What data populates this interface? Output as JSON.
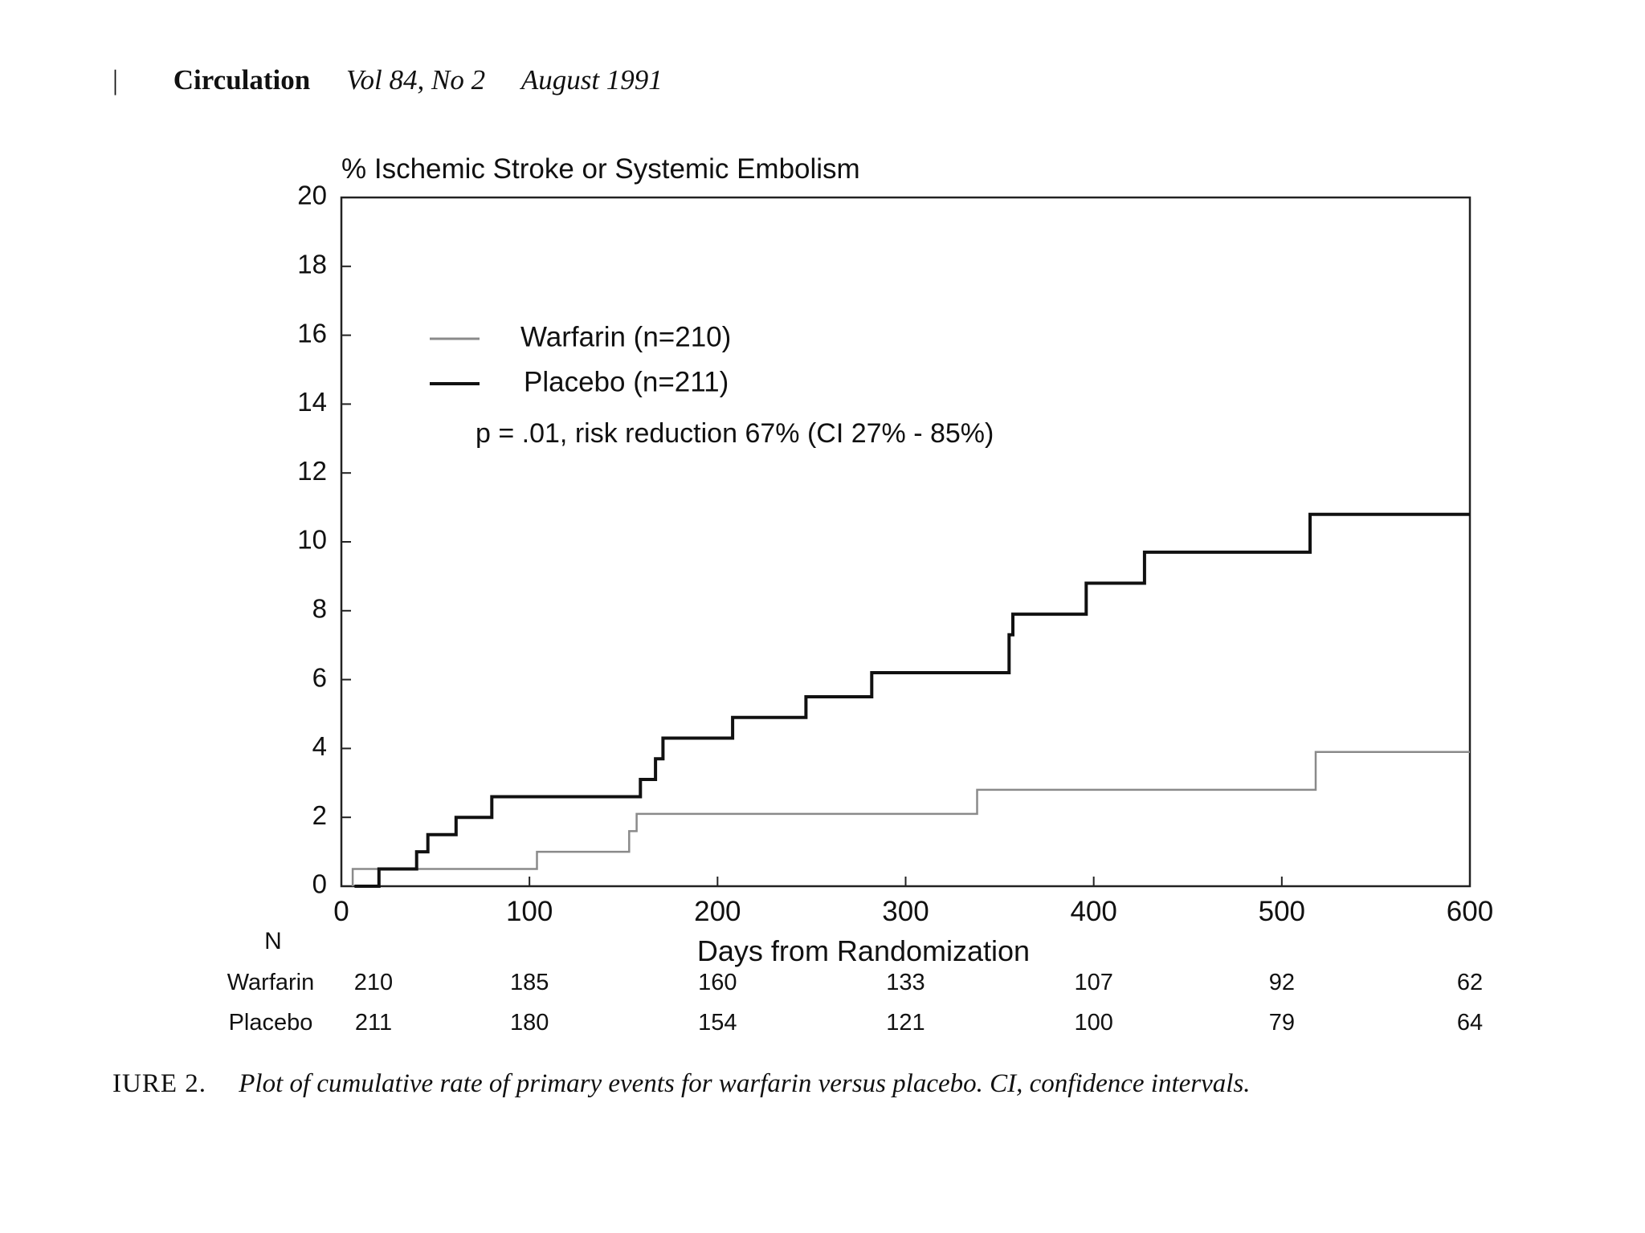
{
  "header": {
    "mark": "|",
    "journal": "Circulation",
    "issue": "Vol 84, No 2",
    "date": "August 1991"
  },
  "chart_data": {
    "type": "line",
    "step": true,
    "ylabel": "% Ischemic Stroke or Systemic Embolism",
    "xlabel": "Days from Randomization",
    "xlim": [
      0,
      600
    ],
    "ylim": [
      0,
      20
    ],
    "x_ticks": [
      "0",
      "100",
      "200",
      "300",
      "400",
      "500",
      "600"
    ],
    "y_ticks": [
      "0",
      "2",
      "4",
      "6",
      "8",
      "10",
      "12",
      "14",
      "16",
      "18",
      "20"
    ],
    "grid": false,
    "legend_position": "top-left",
    "series": [
      {
        "name": "Warfarin (n=210)",
        "color": "#8a8a8a",
        "points": [
          [
            6,
            0
          ],
          [
            6,
            0.5
          ],
          [
            104,
            0.5
          ],
          [
            104,
            1.0
          ],
          [
            153,
            1.0
          ],
          [
            153,
            1.6
          ],
          [
            157,
            1.6
          ],
          [
            157,
            2.1
          ],
          [
            338,
            2.1
          ],
          [
            338,
            2.8
          ],
          [
            518,
            2.8
          ],
          [
            518,
            3.9
          ],
          [
            600,
            3.9
          ]
        ]
      },
      {
        "name": "Placebo (n=211)",
        "color": "#111111",
        "points": [
          [
            7,
            0
          ],
          [
            20,
            0
          ],
          [
            20,
            0.5
          ],
          [
            40,
            0.5
          ],
          [
            40,
            1.0
          ],
          [
            46,
            1.0
          ],
          [
            46,
            1.5
          ],
          [
            61,
            1.5
          ],
          [
            61,
            2.0
          ],
          [
            80,
            2.0
          ],
          [
            80,
            2.6
          ],
          [
            159,
            2.6
          ],
          [
            159,
            3.1
          ],
          [
            167,
            3.1
          ],
          [
            167,
            3.7
          ],
          [
            171,
            3.7
          ],
          [
            171,
            4.3
          ],
          [
            208,
            4.3
          ],
          [
            208,
            4.9
          ],
          [
            247,
            4.9
          ],
          [
            247,
            5.5
          ],
          [
            282,
            5.5
          ],
          [
            282,
            6.2
          ],
          [
            355,
            6.2
          ],
          [
            355,
            7.3
          ],
          [
            357,
            7.3
          ],
          [
            357,
            7.9
          ],
          [
            396,
            7.9
          ],
          [
            396,
            8.8
          ],
          [
            427,
            8.8
          ],
          [
            427,
            9.7
          ],
          [
            515,
            9.7
          ],
          [
            515,
            10.8
          ],
          [
            600,
            10.8
          ]
        ]
      }
    ],
    "annotation": "p = .01, risk reduction 67% (CI 27% - 85%)",
    "at_risk": {
      "label": "N",
      "x": [
        0,
        100,
        200,
        300,
        400,
        500,
        600
      ],
      "rows": [
        {
          "name": "Warfarin",
          "values": [
            "210",
            "185",
            "160",
            "133",
            "107",
            "92",
            "62"
          ]
        },
        {
          "name": "Placebo",
          "values": [
            "211",
            "180",
            "154",
            "121",
            "100",
            "79",
            "64"
          ]
        }
      ]
    }
  },
  "caption": {
    "label": "IURE 2.",
    "text": "Plot of cumulative rate of primary events for warfarin versus placebo. CI, confidence intervals."
  }
}
